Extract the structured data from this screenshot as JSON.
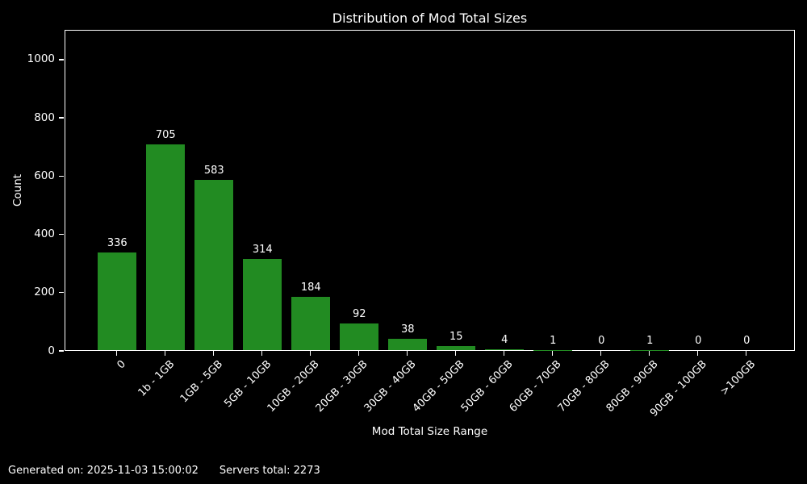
{
  "chart_data": {
    "type": "bar",
    "title": "Distribution of Mod Total Sizes",
    "xlabel": "Mod Total Size Range",
    "ylabel": "Count",
    "categories": [
      "0",
      "1b - 1GB",
      "1GB - 5GB",
      "5GB - 10GB",
      "10GB - 20GB",
      "20GB - 30GB",
      "30GB - 40GB",
      "40GB - 50GB",
      "50GB - 60GB",
      "60GB - 70GB",
      "70GB - 80GB",
      "80GB - 90GB",
      "90GB - 100GB",
      ">100GB"
    ],
    "values": [
      336,
      705,
      583,
      314,
      184,
      92,
      38,
      15,
      4,
      1,
      0,
      1,
      0,
      0
    ],
    "y_ticks": [
      0,
      200,
      400,
      600,
      800,
      1000
    ],
    "ylim": [
      0,
      1102
    ],
    "x_tick_rotation": 45,
    "grid": false,
    "legend": false,
    "bar_color": "#228B22",
    "background_color": "#000000",
    "text_color": "#ffffff",
    "axis_color": "#ffffff"
  },
  "footer": {
    "generated": "Generated on: 2025-11-03 15:00:02",
    "servers": "Servers total: 2273"
  }
}
